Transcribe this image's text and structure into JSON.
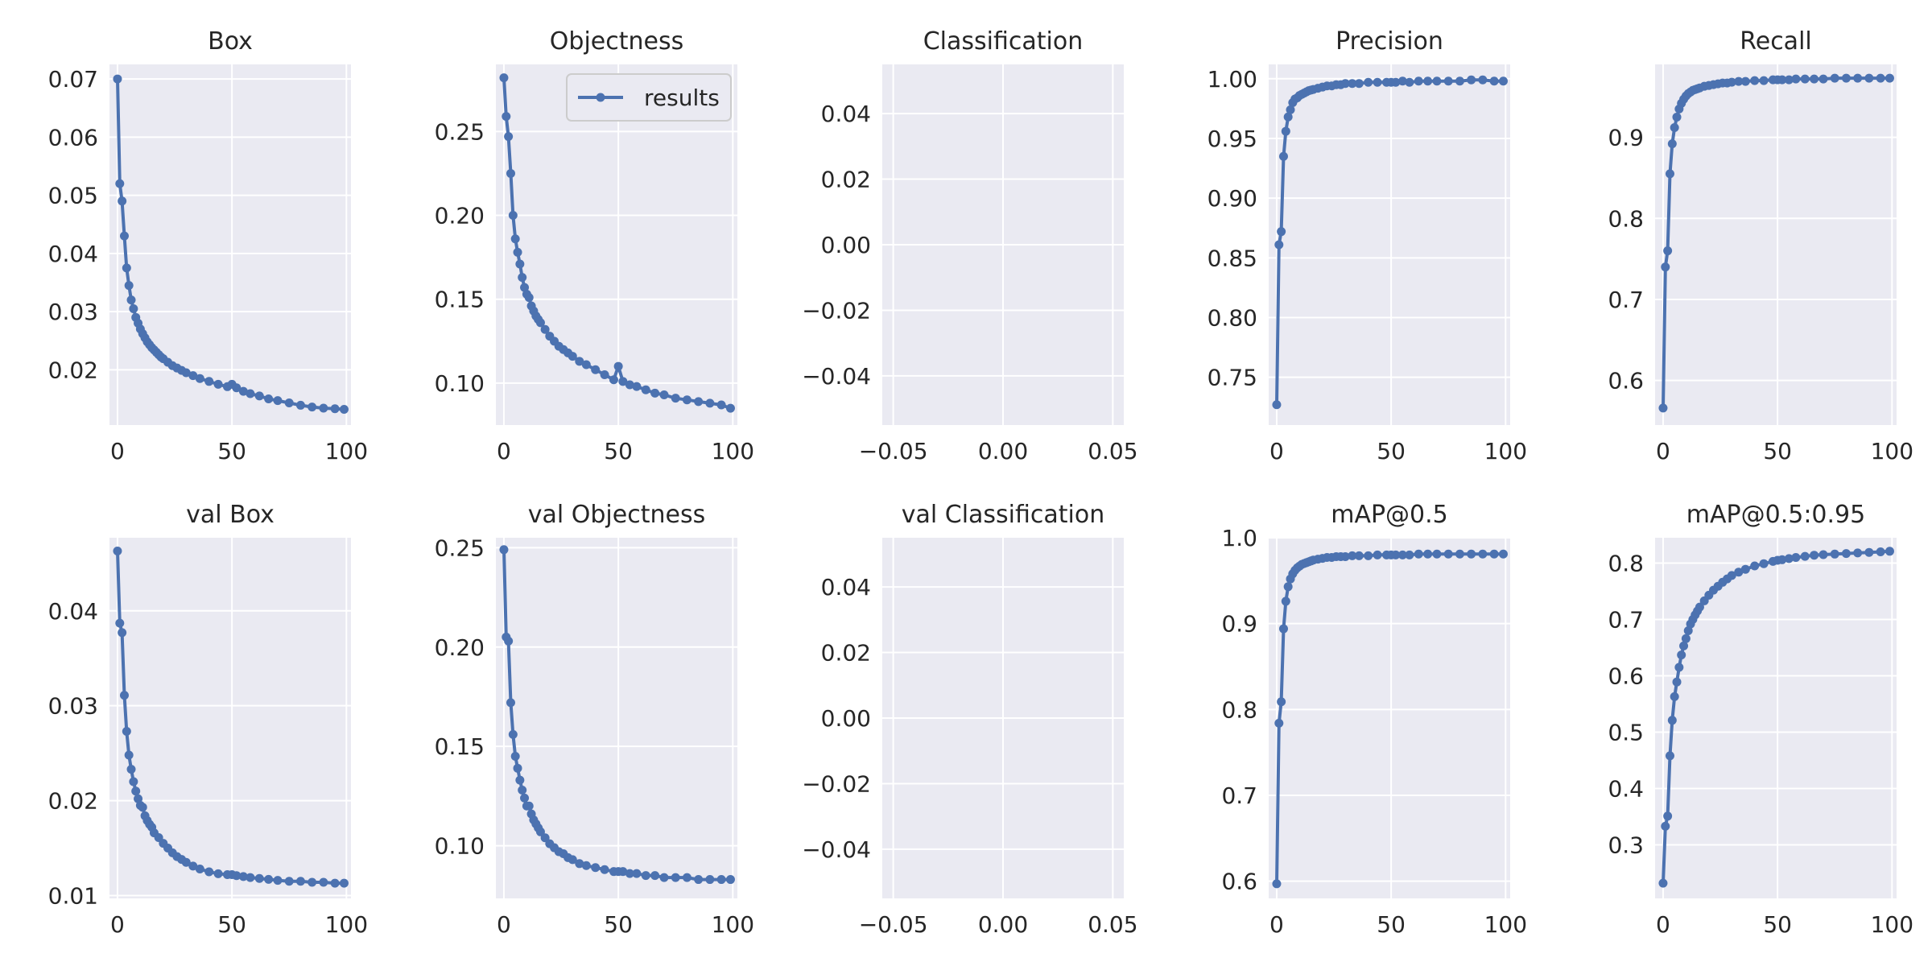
{
  "figure": {
    "style": {
      "axes_bg": "#eaeaf2",
      "grid": "#ffffff",
      "line": "#4c72b0",
      "text": "#262626"
    },
    "legend_label": "results"
  },
  "chart_data": [
    {
      "id": "box",
      "type": "line",
      "title": "Box",
      "xlabel": "",
      "ylabel": "",
      "xlim": [
        -3.5,
        102
      ],
      "ylim": [
        0.0105,
        0.0725
      ],
      "xticks": [
        0,
        50,
        100
      ],
      "xtick_labels": [
        "0",
        "50",
        "100"
      ],
      "yticks": [
        0.02,
        0.03,
        0.04,
        0.05,
        0.06,
        0.07
      ],
      "ytick_labels": [
        "0.02",
        "0.03",
        "0.04",
        "0.05",
        "0.06",
        "0.07"
      ],
      "grid": true,
      "series": [
        {
          "x": [
            0,
            1,
            2,
            3,
            4,
            5,
            6,
            7,
            8,
            9,
            10,
            11,
            12,
            13,
            14,
            15,
            16,
            17,
            18,
            19,
            20,
            22,
            24,
            26,
            28,
            30,
            33,
            36,
            40,
            44,
            48,
            50,
            52,
            55,
            58,
            62,
            66,
            70,
            75,
            80,
            85,
            90,
            95,
            99
          ],
          "y": [
            0.07,
            0.052,
            0.049,
            0.043,
            0.0375,
            0.0345,
            0.032,
            0.0305,
            0.029,
            0.028,
            0.027,
            0.0262,
            0.0255,
            0.0248,
            0.0243,
            0.0238,
            0.0234,
            0.023,
            0.0226,
            0.0222,
            0.0219,
            0.0213,
            0.0207,
            0.0203,
            0.0199,
            0.0195,
            0.019,
            0.0185,
            0.018,
            0.0175,
            0.0171,
            0.0175,
            0.0169,
            0.0163,
            0.0159,
            0.0155,
            0.015,
            0.0147,
            0.0143,
            0.0139,
            0.0136,
            0.0134,
            0.0133,
            0.0132
          ]
        }
      ]
    },
    {
      "id": "objectness",
      "type": "line",
      "title": "Objectness",
      "xlabel": "",
      "ylabel": "",
      "xlim": [
        -3.5,
        102
      ],
      "ylim": [
        0.075,
        0.29
      ],
      "xticks": [
        0,
        50,
        100
      ],
      "xtick_labels": [
        "0",
        "50",
        "100"
      ],
      "yticks": [
        0.1,
        0.15,
        0.2,
        0.25
      ],
      "ytick_labels": [
        "0.10",
        "0.15",
        "0.20",
        "0.25"
      ],
      "grid": true,
      "legend": {
        "show": true,
        "position": "top-right"
      },
      "series": [
        {
          "name": "results",
          "x": [
            0,
            1,
            2,
            3,
            4,
            5,
            6,
            7,
            8,
            9,
            10,
            11,
            12,
            13,
            14,
            15,
            16,
            18,
            20,
            22,
            24,
            26,
            28,
            30,
            33,
            36,
            40,
            44,
            48,
            50,
            52,
            55,
            58,
            62,
            66,
            70,
            75,
            80,
            85,
            90,
            95,
            99
          ],
          "y": [
            0.282,
            0.259,
            0.247,
            0.225,
            0.2,
            0.186,
            0.178,
            0.171,
            0.163,
            0.157,
            0.153,
            0.151,
            0.146,
            0.143,
            0.14,
            0.138,
            0.136,
            0.132,
            0.128,
            0.125,
            0.122,
            0.12,
            0.118,
            0.116,
            0.113,
            0.111,
            0.108,
            0.105,
            0.102,
            0.11,
            0.101,
            0.099,
            0.098,
            0.096,
            0.094,
            0.093,
            0.091,
            0.09,
            0.089,
            0.088,
            0.087,
            0.085
          ]
        }
      ]
    },
    {
      "id": "classification",
      "type": "line",
      "title": "Classification",
      "xlabel": "",
      "ylabel": "",
      "xlim": [
        -0.055,
        0.055
      ],
      "ylim": [
        -0.055,
        0.055
      ],
      "xticks": [
        -0.05,
        0.0,
        0.05
      ],
      "xtick_labels": [
        "−0.05",
        "0.00",
        "0.05"
      ],
      "yticks": [
        -0.04,
        -0.02,
        0.0,
        0.02,
        0.04
      ],
      "ytick_labels": [
        "−0.04",
        "−0.02",
        "0.00",
        "0.02",
        "0.04"
      ],
      "grid": true,
      "series": []
    },
    {
      "id": "precision",
      "type": "line",
      "title": "Precision",
      "xlabel": "",
      "ylabel": "",
      "xlim": [
        -3.5,
        102
      ],
      "ylim": [
        0.71,
        1.012
      ],
      "xticks": [
        0,
        50,
        100
      ],
      "xtick_labels": [
        "0",
        "50",
        "100"
      ],
      "yticks": [
        0.75,
        0.8,
        0.85,
        0.9,
        0.95,
        1.0
      ],
      "ytick_labels": [
        "0.75",
        "0.80",
        "0.85",
        "0.90",
        "0.95",
        "1.00"
      ],
      "grid": true,
      "series": [
        {
          "x": [
            0,
            1,
            2,
            3,
            4,
            5,
            6,
            7,
            8,
            9,
            10,
            11,
            12,
            13,
            14,
            15,
            16,
            18,
            20,
            22,
            24,
            26,
            28,
            30,
            33,
            36,
            40,
            44,
            48,
            50,
            52,
            55,
            58,
            62,
            66,
            70,
            75,
            80,
            85,
            90,
            95,
            99
          ],
          "y": [
            0.727,
            0.861,
            0.872,
            0.935,
            0.956,
            0.968,
            0.974,
            0.98,
            0.983,
            0.984,
            0.986,
            0.987,
            0.988,
            0.989,
            0.99,
            0.9905,
            0.991,
            0.992,
            0.993,
            0.994,
            0.994,
            0.995,
            0.995,
            0.996,
            0.996,
            0.996,
            0.997,
            0.997,
            0.997,
            0.997,
            0.997,
            0.998,
            0.997,
            0.998,
            0.998,
            0.998,
            0.998,
            0.998,
            0.999,
            0.999,
            0.998,
            0.998
          ]
        }
      ]
    },
    {
      "id": "recall",
      "type": "line",
      "title": "Recall",
      "xlabel": "",
      "ylabel": "",
      "xlim": [
        -3.5,
        102
      ],
      "ylim": [
        0.545,
        0.99
      ],
      "xticks": [
        0,
        50,
        100
      ],
      "xtick_labels": [
        "0",
        "50",
        "100"
      ],
      "yticks": [
        0.6,
        0.7,
        0.8,
        0.9
      ],
      "ytick_labels": [
        "0.6",
        "0.7",
        "0.8",
        "0.9"
      ],
      "grid": true,
      "series": [
        {
          "x": [
            0,
            1,
            2,
            3,
            4,
            5,
            6,
            7,
            8,
            9,
            10,
            11,
            12,
            13,
            14,
            15,
            16,
            18,
            20,
            22,
            24,
            26,
            28,
            30,
            33,
            36,
            40,
            44,
            48,
            50,
            52,
            55,
            58,
            62,
            66,
            70,
            75,
            80,
            85,
            90,
            95,
            99
          ],
          "y": [
            0.566,
            0.74,
            0.76,
            0.855,
            0.892,
            0.912,
            0.925,
            0.935,
            0.942,
            0.947,
            0.951,
            0.954,
            0.956,
            0.958,
            0.959,
            0.96,
            0.961,
            0.963,
            0.964,
            0.965,
            0.966,
            0.967,
            0.967,
            0.968,
            0.969,
            0.969,
            0.97,
            0.97,
            0.971,
            0.971,
            0.971,
            0.971,
            0.972,
            0.972,
            0.972,
            0.972,
            0.973,
            0.973,
            0.973,
            0.973,
            0.973,
            0.973
          ]
        }
      ]
    },
    {
      "id": "val_box",
      "type": "line",
      "title": "val Box",
      "xlabel": "",
      "ylabel": "",
      "xlim": [
        -3.5,
        102
      ],
      "ylim": [
        0.0097,
        0.0477
      ],
      "xticks": [
        0,
        50,
        100
      ],
      "xtick_labels": [
        "0",
        "50",
        "100"
      ],
      "yticks": [
        0.01,
        0.02,
        0.03,
        0.04
      ],
      "ytick_labels": [
        "0.01",
        "0.02",
        "0.03",
        "0.04"
      ],
      "grid": true,
      "series": [
        {
          "x": [
            0,
            1,
            2,
            3,
            4,
            5,
            6,
            7,
            8,
            9,
            10,
            11,
            12,
            13,
            14,
            15,
            16,
            18,
            20,
            22,
            24,
            26,
            28,
            30,
            33,
            36,
            40,
            44,
            48,
            50,
            52,
            55,
            58,
            62,
            66,
            70,
            75,
            80,
            85,
            90,
            95,
            99
          ],
          "y": [
            0.0463,
            0.0387,
            0.0377,
            0.0311,
            0.0273,
            0.0248,
            0.0233,
            0.022,
            0.021,
            0.0202,
            0.0195,
            0.0193,
            0.0184,
            0.0179,
            0.0175,
            0.0172,
            0.0166,
            0.0161,
            0.0155,
            0.015,
            0.0145,
            0.0141,
            0.0138,
            0.0135,
            0.0131,
            0.0128,
            0.0125,
            0.0123,
            0.0122,
            0.0122,
            0.0121,
            0.012,
            0.0119,
            0.0118,
            0.0117,
            0.0116,
            0.0115,
            0.0115,
            0.0114,
            0.0114,
            0.0113,
            0.0113
          ]
        }
      ]
    },
    {
      "id": "val_objectness",
      "type": "line",
      "title": "val Objectness",
      "xlabel": "",
      "ylabel": "",
      "xlim": [
        -3.5,
        102
      ],
      "ylim": [
        0.0735,
        0.255
      ],
      "xticks": [
        0,
        50,
        100
      ],
      "xtick_labels": [
        "0",
        "50",
        "100"
      ],
      "yticks": [
        0.1,
        0.15,
        0.2,
        0.25
      ],
      "ytick_labels": [
        "0.10",
        "0.15",
        "0.20",
        "0.25"
      ],
      "grid": true,
      "series": [
        {
          "x": [
            0,
            1,
            2,
            3,
            4,
            5,
            6,
            7,
            8,
            9,
            10,
            11,
            12,
            13,
            14,
            15,
            16,
            18,
            20,
            22,
            24,
            26,
            28,
            30,
            33,
            36,
            40,
            44,
            48,
            50,
            52,
            55,
            58,
            62,
            66,
            70,
            75,
            80,
            85,
            90,
            95,
            99
          ],
          "y": [
            0.249,
            0.205,
            0.203,
            0.172,
            0.156,
            0.145,
            0.139,
            0.133,
            0.128,
            0.124,
            0.12,
            0.12,
            0.116,
            0.113,
            0.111,
            0.109,
            0.107,
            0.104,
            0.101,
            0.099,
            0.097,
            0.096,
            0.094,
            0.093,
            0.091,
            0.09,
            0.089,
            0.088,
            0.087,
            0.087,
            0.087,
            0.086,
            0.086,
            0.085,
            0.085,
            0.084,
            0.084,
            0.084,
            0.083,
            0.083,
            0.083,
            0.083
          ]
        }
      ]
    },
    {
      "id": "val_classification",
      "type": "line",
      "title": "val Classification",
      "xlabel": "",
      "ylabel": "",
      "xlim": [
        -0.055,
        0.055
      ],
      "ylim": [
        -0.055,
        0.055
      ],
      "xticks": [
        -0.05,
        0.0,
        0.05
      ],
      "xtick_labels": [
        "−0.05",
        "0.00",
        "0.05"
      ],
      "yticks": [
        -0.04,
        -0.02,
        0.0,
        0.02,
        0.04
      ],
      "ytick_labels": [
        "−0.04",
        "−0.02",
        "0.00",
        "0.02",
        "0.04"
      ],
      "grid": true,
      "series": []
    },
    {
      "id": "map50",
      "type": "line",
      "title": "mAP@0.5",
      "xlabel": "",
      "ylabel": "",
      "xlim": [
        -3.5,
        102
      ],
      "ylim": [
        0.58,
        1.0
      ],
      "xticks": [
        0,
        50,
        100
      ],
      "xtick_labels": [
        "0",
        "50",
        "100"
      ],
      "yticks": [
        0.6,
        0.7,
        0.8,
        0.9,
        1.0
      ],
      "ytick_labels": [
        "0.6",
        "0.7",
        "0.8",
        "0.9",
        "1.0"
      ],
      "grid": true,
      "series": [
        {
          "x": [
            0,
            1,
            2,
            3,
            4,
            5,
            6,
            7,
            8,
            9,
            10,
            11,
            12,
            13,
            14,
            15,
            16,
            18,
            20,
            22,
            24,
            26,
            28,
            30,
            33,
            36,
            40,
            44,
            48,
            50,
            52,
            55,
            58,
            62,
            66,
            70,
            75,
            80,
            85,
            90,
            95,
            99
          ],
          "y": [
            0.597,
            0.784,
            0.809,
            0.894,
            0.926,
            0.943,
            0.952,
            0.958,
            0.962,
            0.965,
            0.967,
            0.969,
            0.97,
            0.971,
            0.972,
            0.973,
            0.974,
            0.975,
            0.976,
            0.977,
            0.977,
            0.978,
            0.978,
            0.978,
            0.979,
            0.979,
            0.979,
            0.98,
            0.98,
            0.98,
            0.98,
            0.98,
            0.98,
            0.981,
            0.981,
            0.981,
            0.981,
            0.981,
            0.981,
            0.981,
            0.981,
            0.981
          ]
        }
      ]
    },
    {
      "id": "map5095",
      "type": "line",
      "title": "mAP@0.5:0.95",
      "xlabel": "",
      "ylabel": "",
      "xlim": [
        -3.5,
        102
      ],
      "ylim": [
        0.205,
        0.845
      ],
      "xticks": [
        0,
        50,
        100
      ],
      "xtick_labels": [
        "0",
        "50",
        "100"
      ],
      "yticks": [
        0.3,
        0.4,
        0.5,
        0.6,
        0.7,
        0.8
      ],
      "ytick_labels": [
        "0.3",
        "0.4",
        "0.5",
        "0.6",
        "0.7",
        "0.8"
      ],
      "grid": true,
      "series": [
        {
          "x": [
            0,
            1,
            2,
            3,
            4,
            5,
            6,
            7,
            8,
            9,
            10,
            11,
            12,
            13,
            14,
            15,
            16,
            18,
            20,
            22,
            24,
            26,
            28,
            30,
            33,
            36,
            40,
            44,
            48,
            50,
            52,
            55,
            58,
            62,
            66,
            70,
            75,
            80,
            85,
            90,
            95,
            99
          ],
          "y": [
            0.232,
            0.333,
            0.351,
            0.458,
            0.521,
            0.563,
            0.589,
            0.615,
            0.637,
            0.653,
            0.666,
            0.68,
            0.692,
            0.7,
            0.708,
            0.715,
            0.722,
            0.733,
            0.743,
            0.752,
            0.759,
            0.766,
            0.772,
            0.778,
            0.784,
            0.789,
            0.795,
            0.799,
            0.803,
            0.805,
            0.806,
            0.808,
            0.81,
            0.812,
            0.814,
            0.815,
            0.816,
            0.817,
            0.818,
            0.819,
            0.82,
            0.821
          ]
        }
      ]
    }
  ]
}
